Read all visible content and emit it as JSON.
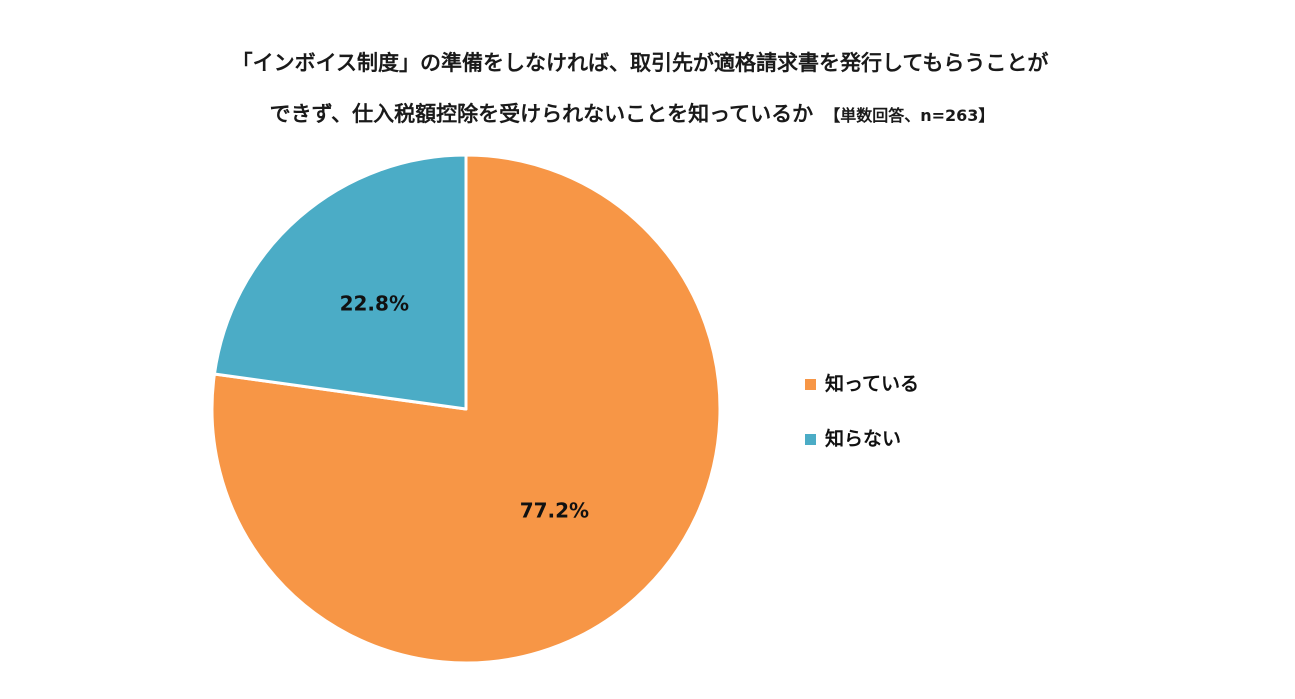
{
  "chart_data": {
    "type": "pie",
    "title_line1": "「インボイス制度」の準備をしなければ、取引先が適格請求書を発行してもらうことが",
    "title_line2": "できず、仕入税額控除を受けられないことを知っているか",
    "title_note": "【単数回答、n=263】",
    "categories": [
      "知っている",
      "知らない"
    ],
    "values": [
      77.2,
      22.8
    ],
    "data_labels": [
      "77.2%",
      "22.8%"
    ],
    "colors": [
      "#F79646",
      "#4BACC6"
    ],
    "legend_position": "right"
  }
}
